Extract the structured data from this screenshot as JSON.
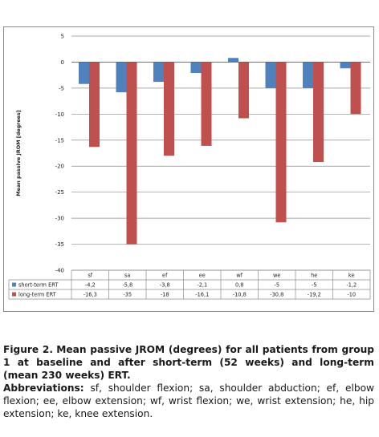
{
  "chart_data": {
    "type": "bar",
    "ylabel": "Mean passive JROM [degrees]",
    "ylim": [
      -40,
      5
    ],
    "yticks": [
      "5",
      "0",
      "-5",
      "-10",
      "-15",
      "-20",
      "-25",
      "-30",
      "-35",
      "-40"
    ],
    "categories": [
      "sf",
      "sa",
      "ef",
      "ee",
      "wf",
      "we",
      "he",
      "ke"
    ],
    "series": [
      {
        "name": "short-term ERT",
        "color": "#4f81bd",
        "values": [
          -4.2,
          -5.8,
          -3.8,
          -2.1,
          0.8,
          -5,
          -5,
          -1.2
        ],
        "labels": [
          "-4,2",
          "-5,8",
          "-3,8",
          "-2,1",
          "0,8",
          "-5",
          "-5",
          "-1,2"
        ]
      },
      {
        "name": "long-term ERT",
        "color": "#c0504d",
        "values": [
          -16.3,
          -35,
          -18,
          -16.1,
          -10.8,
          -30.8,
          -19.2,
          -10
        ],
        "labels": [
          "-16,3",
          "-35",
          "-18",
          "-16,1",
          "-10,8",
          "-30,8",
          "-19,2",
          "-10"
        ]
      }
    ],
    "legend": "data-table",
    "grid": true
  },
  "caption": {
    "figure_label": "Figure 2.",
    "figure_text": "Mean passive JROM (degrees) for all patients from group 1 at baseline and after short-term (52 weeks) and long-term (mean 230 weeks) ERT.",
    "abbrev_label": "Abbreviations:",
    "abbrev_text": "sf, shoulder flexion; sa, shoulder abduction; ef, elbow flexion; ee, elbow extension; wf, wrist flexion; we, wrist extension; he, hip extension; ke, knee extension."
  }
}
